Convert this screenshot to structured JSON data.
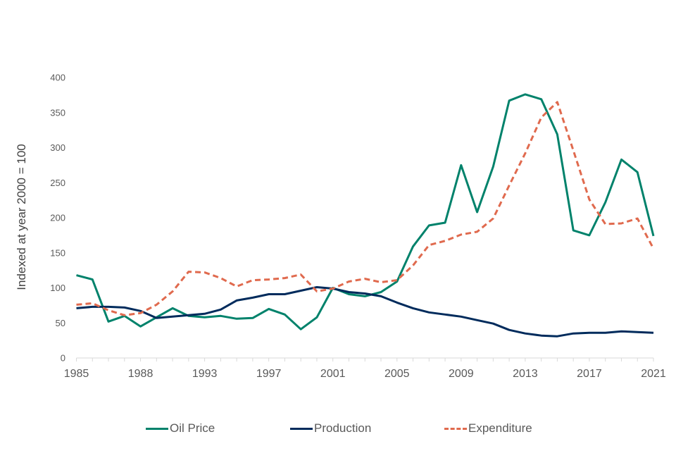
{
  "chart_data": {
    "type": "line",
    "title": "",
    "xlabel": "",
    "ylabel": "Indexed  at year 2000 = 100",
    "ylim": [
      0,
      400
    ],
    "yticks": [
      0,
      50,
      100,
      150,
      200,
      250,
      300,
      350,
      400
    ],
    "grid": false,
    "legend_position": "bottom",
    "x": [
      0,
      1,
      2,
      3,
      4,
      5,
      6,
      7,
      8,
      9,
      10,
      11,
      12,
      13,
      14,
      15,
      16,
      17,
      18,
      19,
      20,
      21,
      22,
      23,
      24,
      25,
      26,
      27,
      28,
      29,
      30,
      31,
      32,
      33,
      34,
      35,
      36
    ],
    "x_tick_indices": [
      0,
      4,
      8,
      12,
      16,
      20,
      24,
      28,
      32,
      36
    ],
    "x_tick_labels": [
      "1985",
      "1988",
      "1993",
      "1997",
      "2001",
      "2005",
      "2009",
      "2013",
      "2017",
      "2021"
    ],
    "series": [
      {
        "name": "Oil Price",
        "color": "#00826b",
        "style": "solid",
        "values": [
          118,
          112,
          52,
          60,
          45,
          58,
          71,
          60,
          58,
          60,
          56,
          57,
          70,
          62,
          41,
          58,
          100,
          91,
          88,
          94,
          109,
          159,
          189,
          193,
          275,
          208,
          273,
          367,
          376,
          369,
          319,
          182,
          175,
          222,
          283,
          265,
          174
        ]
      },
      {
        "name": "Production",
        "color": "#002b5c",
        "style": "solid",
        "values": [
          71,
          73,
          73,
          72,
          67,
          57,
          59,
          61,
          63,
          69,
          82,
          86,
          91,
          91,
          96,
          101,
          99,
          94,
          92,
          88,
          79,
          71,
          65,
          62,
          59,
          54,
          49,
          40,
          35,
          32,
          31,
          35,
          36,
          36,
          38,
          37,
          36
        ]
      },
      {
        "name": "Expenditure",
        "color": "#e06a4e",
        "style": "dashed",
        "values": [
          76,
          78,
          68,
          61,
          64,
          76,
          95,
          123,
          122,
          114,
          102,
          111,
          112,
          114,
          119,
          95,
          99,
          109,
          113,
          108,
          111,
          132,
          161,
          167,
          176,
          180,
          199,
          246,
          292,
          343,
          365,
          296,
          226,
          191,
          192,
          199,
          156
        ]
      }
    ]
  }
}
